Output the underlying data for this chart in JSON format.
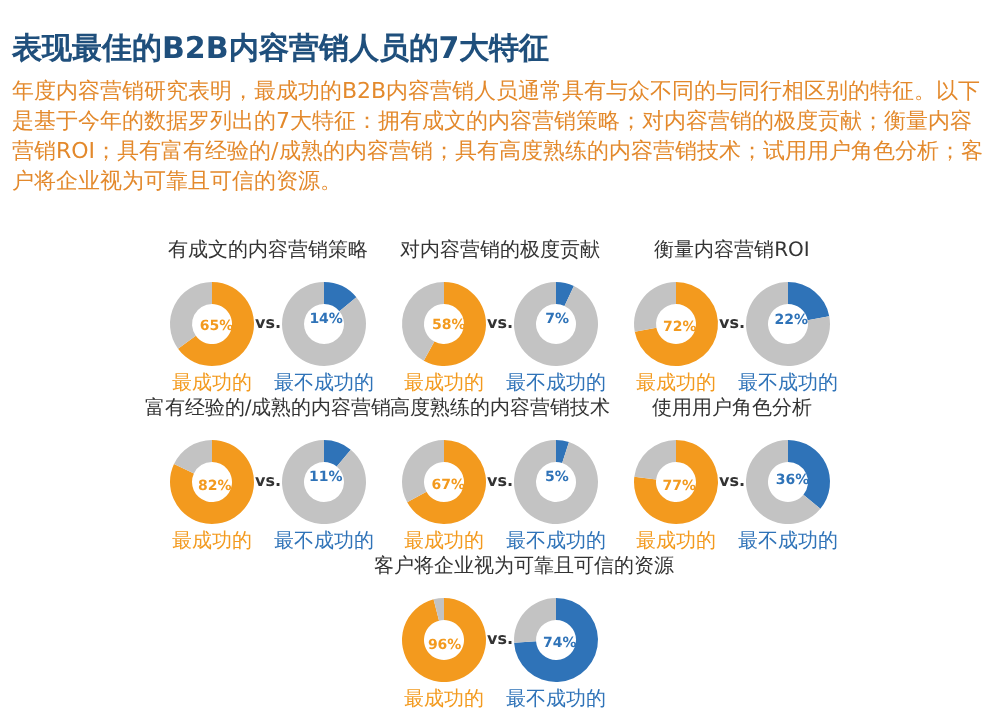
{
  "chart_data": [
    {
      "type": "other",
      "title": "表现最佳的B2B内容营销人员的7大特征",
      "subtitle": "年度内容营销研究表明，最成功的B2B内容营销人员通常具有与众不同的与同行相区别的特征。以下是基于今年的数据罗列出的7大特征：拥有成文的内容营销策略；对内容营销的极度贡献；衡量内容营销ROI；具有富有经验的/成熟的内容营销；具有高度熟练的内容营销技术；试用用户角色分析；客户将企业视为可靠且可信的资源。"
    },
    {
      "type": "donut",
      "title": "有成文的内容营销策略",
      "categories": [
        null,
        null
      ],
      "values": [
        65,
        35
      ],
      "colors": [
        "#f39a1e",
        "#c3c3c3"
      ],
      "value_labels": [
        "65%",
        null
      ],
      "xlabel": "最成功的",
      "annotations": [
        "vs."
      ]
    },
    {
      "type": "donut",
      "categories": [
        null,
        null
      ],
      "values": [
        14,
        86
      ],
      "colors": [
        "#2f73b8",
        "#c3c3c3"
      ],
      "value_labels": [
        "14%",
        null
      ],
      "xlabel": "最不成功的"
    },
    {
      "type": "donut",
      "title": "对内容营销的极度贡献",
      "categories": [
        null,
        null
      ],
      "values": [
        58,
        42
      ],
      "colors": [
        "#f39a1e",
        "#c3c3c3"
      ],
      "value_labels": [
        "58%",
        null
      ],
      "xlabel": "最成功的",
      "annotations": [
        "vs."
      ]
    },
    {
      "type": "donut",
      "categories": [
        null,
        null
      ],
      "values": [
        7,
        93
      ],
      "colors": [
        "#2f73b8",
        "#c3c3c3"
      ],
      "value_labels": [
        "7%",
        null
      ],
      "xlabel": "最不成功的"
    },
    {
      "type": "donut",
      "title": "衡量内容营销ROI",
      "categories": [
        null,
        null
      ],
      "values": [
        72,
        28
      ],
      "colors": [
        "#f39a1e",
        "#c3c3c3"
      ],
      "value_labels": [
        "72%",
        null
      ],
      "xlabel": "最成功的",
      "annotations": [
        "vs."
      ]
    },
    {
      "type": "donut",
      "categories": [
        null,
        null
      ],
      "values": [
        22,
        78
      ],
      "colors": [
        "#2f73b8",
        "#c3c3c3"
      ],
      "value_labels": [
        "22%",
        null
      ],
      "xlabel": "最不成功的"
    },
    {
      "type": "donut",
      "title": "富有经验的/成熟的内容营销",
      "categories": [
        null,
        null
      ],
      "values": [
        82,
        18
      ],
      "colors": [
        "#f39a1e",
        "#c3c3c3"
      ],
      "value_labels": [
        "82%",
        null
      ],
      "xlabel": "最成功的",
      "annotations": [
        "vs."
      ]
    },
    {
      "type": "donut",
      "categories": [
        null,
        null
      ],
      "values": [
        11,
        89
      ],
      "colors": [
        "#2f73b8",
        "#c3c3c3"
      ],
      "value_labels": [
        "11%",
        null
      ],
      "xlabel": "最不成功的"
    },
    {
      "type": "donut",
      "title": "高度熟练的内容营销技术",
      "categories": [
        null,
        null
      ],
      "values": [
        67,
        33
      ],
      "colors": [
        "#f39a1e",
        "#c3c3c3"
      ],
      "value_labels": [
        "67%",
        null
      ],
      "xlabel": "最成功的",
      "annotations": [
        "vs."
      ]
    },
    {
      "type": "donut",
      "categories": [
        null,
        null
      ],
      "values": [
        5,
        95
      ],
      "colors": [
        "#2f73b8",
        "#c3c3c3"
      ],
      "value_labels": [
        "5%",
        null
      ],
      "xlabel": "最不成功的"
    },
    {
      "type": "donut",
      "title": "使用用户角色分析",
      "categories": [
        null,
        null
      ],
      "values": [
        77,
        23
      ],
      "colors": [
        "#f39a1e",
        "#c3c3c3"
      ],
      "value_labels": [
        "77%",
        null
      ],
      "xlabel": "最成功的",
      "annotations": [
        "vs."
      ]
    },
    {
      "type": "donut",
      "categories": [
        null,
        null
      ],
      "values": [
        36,
        64
      ],
      "colors": [
        "#2f73b8",
        "#c3c3c3"
      ],
      "value_labels": [
        "36%",
        null
      ],
      "xlabel": "最不成功的"
    },
    {
      "type": "donut",
      "title": "客户将企业视为可靠且可信的资源",
      "categories": [
        null,
        null
      ],
      "values": [
        96,
        4
      ],
      "colors": [
        "#f39a1e",
        "#c3c3c3"
      ],
      "value_labels": [
        "96%",
        null
      ],
      "xlabel": "最成功的",
      "annotations": [
        "vs."
      ]
    },
    {
      "type": "donut",
      "categories": [
        null,
        null
      ],
      "values": [
        74,
        26
      ],
      "colors": [
        "#2f73b8",
        "#c3c3c3"
      ],
      "value_labels": [
        "74%",
        null
      ],
      "xlabel": "最不成功的"
    }
  ]
}
